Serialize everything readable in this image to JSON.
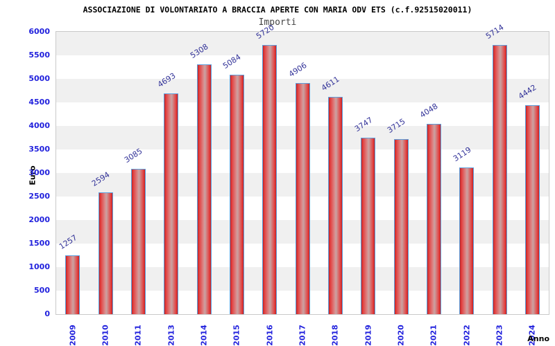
{
  "chart_data": {
    "type": "bar",
    "title": "ASSOCIAZIONE DI VOLONTARIATO A BRACCIA APERTE CON MARIA ODV ETS (c.f.92515020011)",
    "subtitle": "Importi",
    "xlabel": "Anno",
    "ylabel": "Euro",
    "categories": [
      "2009",
      "2010",
      "2011",
      "2013",
      "2014",
      "2015",
      "2016",
      "2017",
      "2018",
      "2019",
      "2020",
      "2021",
      "2022",
      "2023",
      "2024"
    ],
    "values": [
      1257,
      2594,
      3085,
      4693,
      5308,
      5084,
      5720,
      4906,
      4611,
      3747,
      3715,
      4048,
      3119,
      5714,
      4442
    ],
    "ylim": [
      0,
      6000
    ],
    "ytick_step": 500,
    "grid": "alternating horizontal bands every 500",
    "legend": "none",
    "colors": {
      "bar_fill": "#d83232",
      "bar_border": "#5c9fdd",
      "value_label": "#333399",
      "axis_tick_label": "#2222dd",
      "band": "#f0f0f0",
      "plot_border": "#c9c9c9",
      "title": "#000000",
      "subtitle": "#444444"
    }
  }
}
